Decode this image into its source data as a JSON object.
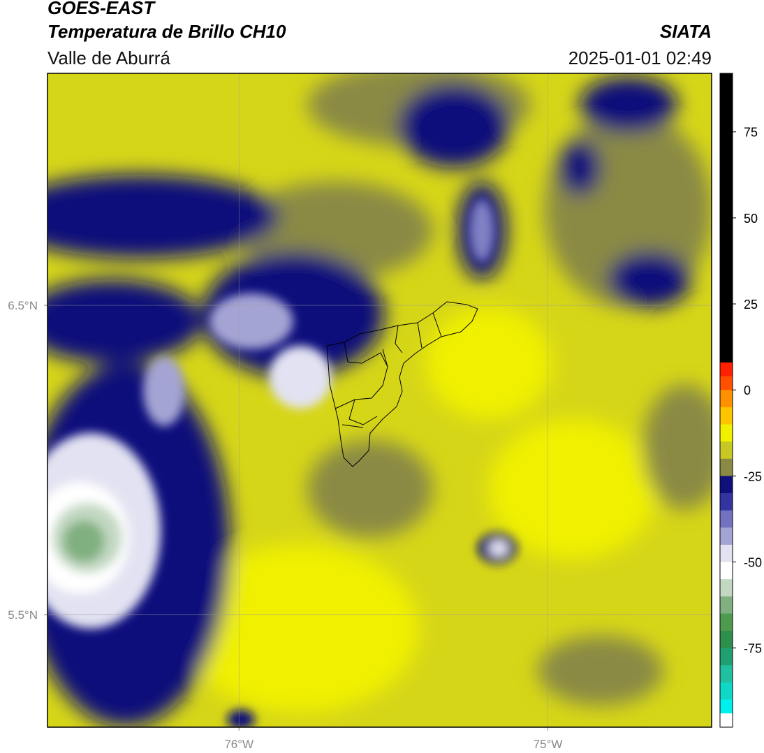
{
  "header": {
    "satellite": "GOES-EAST",
    "product": "Temperatura de Brillo CH10",
    "region": "Valle de Aburrá",
    "source": "SIATA",
    "datetime": "2025-01-01 02:49"
  },
  "map": {
    "lonlim": [
      -76.62,
      -74.47
    ],
    "latlim": [
      5.136,
      7.25
    ],
    "lon_ticks": [
      {
        "value": -76,
        "label": "76°W"
      },
      {
        "value": -75,
        "label": "75°W"
      }
    ],
    "lat_ticks": [
      {
        "value": 6.5,
        "label": "6.5°N"
      },
      {
        "value": 5.5,
        "label": "5.5°N"
      }
    ],
    "grid": true
  },
  "colorbar": {
    "lim": [
      -98,
      92
    ],
    "ticks": [
      75,
      50,
      25,
      0,
      -25,
      -50,
      -75
    ],
    "bands": [
      {
        "from": 92,
        "to": 8,
        "color": "#000000"
      },
      {
        "from": 8,
        "to": 4,
        "color": "#ff2000"
      },
      {
        "from": 4,
        "to": 0,
        "color": "#ff5000"
      },
      {
        "from": 0,
        "to": -5,
        "color": "#ff9000"
      },
      {
        "from": -5,
        "to": -10,
        "color": "#ffc400"
      },
      {
        "from": -10,
        "to": -15,
        "color": "#f0f000"
      },
      {
        "from": -15,
        "to": -20,
        "color": "#c8c824"
      },
      {
        "from": -20,
        "to": -25,
        "color": "#8a8a44"
      },
      {
        "from": -25,
        "to": -30,
        "color": "#10107c"
      },
      {
        "from": -30,
        "to": -35,
        "color": "#3434a0"
      },
      {
        "from": -35,
        "to": -40,
        "color": "#7272c0"
      },
      {
        "from": -40,
        "to": -45,
        "color": "#a4a4d4"
      },
      {
        "from": -45,
        "to": -50,
        "color": "#e2e2f2"
      },
      {
        "from": -50,
        "to": -55,
        "color": "#ffffff"
      },
      {
        "from": -55,
        "to": -60,
        "color": "#c2d8c2"
      },
      {
        "from": -60,
        "to": -65,
        "color": "#80b080"
      },
      {
        "from": -65,
        "to": -70,
        "color": "#4e9a4e"
      },
      {
        "from": -70,
        "to": -75,
        "color": "#2e8e4c"
      },
      {
        "from": -75,
        "to": -80,
        "color": "#20a070"
      },
      {
        "from": -80,
        "to": -85,
        "color": "#20c0a0"
      },
      {
        "from": -85,
        "to": -90,
        "color": "#10d8c8"
      },
      {
        "from": -90,
        "to": -94,
        "color": "#00f0f0"
      },
      {
        "from": -94,
        "to": -98,
        "color": "#ffffff"
      }
    ]
  }
}
